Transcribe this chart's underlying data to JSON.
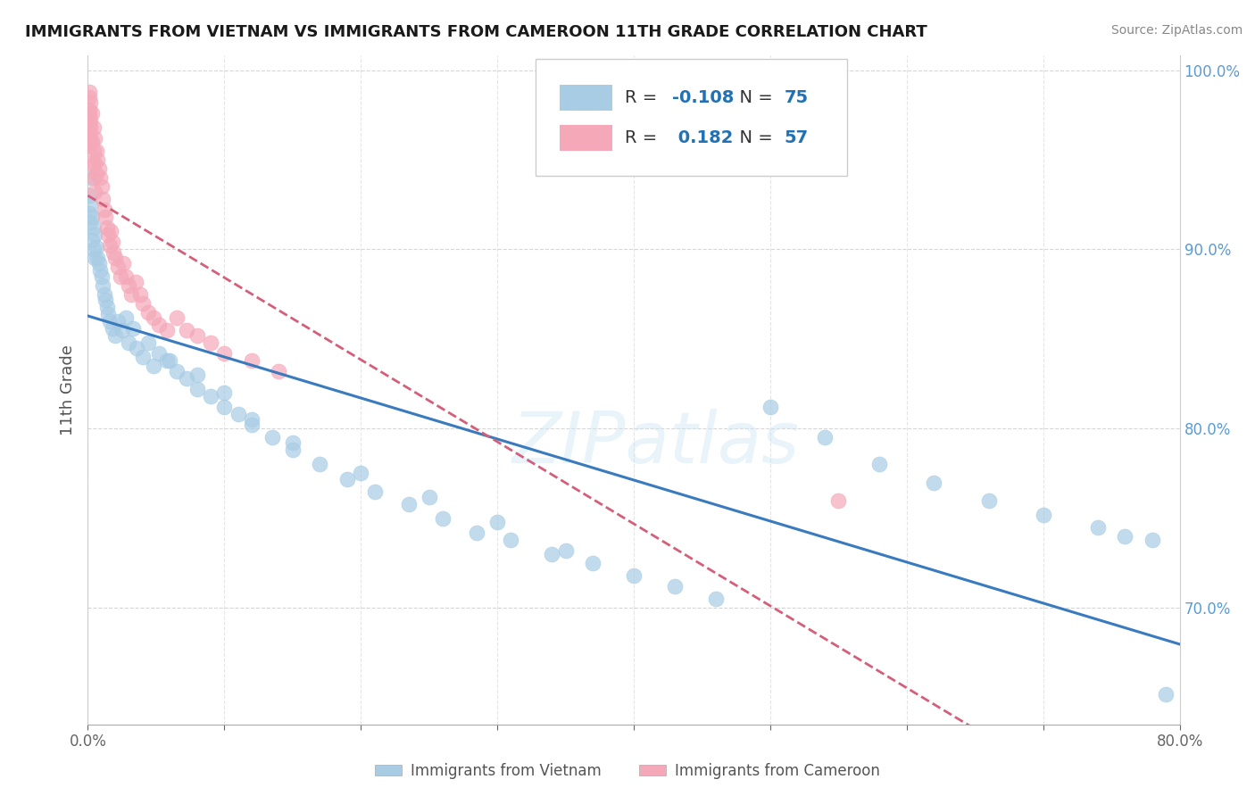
{
  "title": "IMMIGRANTS FROM VIETNAM VS IMMIGRANTS FROM CAMEROON 11TH GRADE CORRELATION CHART",
  "source": "Source: ZipAtlas.com",
  "ylabel": "11th Grade",
  "xlim": [
    0.0,
    0.8
  ],
  "ylim": [
    0.635,
    1.008
  ],
  "yticks": [
    0.7,
    0.8,
    0.9,
    1.0
  ],
  "ytick_labels": [
    "70.0%",
    "80.0%",
    "90.0%",
    "100.0%"
  ],
  "R_vietnam": -0.108,
  "N_vietnam": 75,
  "R_cameroon": 0.182,
  "N_cameroon": 57,
  "vietnam_color": "#a8cce4",
  "cameroon_color": "#f4a8b8",
  "vietnam_line_color": "#3a7abf",
  "cameroon_line_color": "#d45f7a",
  "vietnam_x": [
    0.001,
    0.001,
    0.001,
    0.002,
    0.002,
    0.003,
    0.003,
    0.004,
    0.004,
    0.005,
    0.005,
    0.006,
    0.007,
    0.008,
    0.009,
    0.01,
    0.011,
    0.012,
    0.013,
    0.014,
    0.015,
    0.016,
    0.018,
    0.02,
    0.022,
    0.025,
    0.028,
    0.03,
    0.033,
    0.036,
    0.04,
    0.044,
    0.048,
    0.052,
    0.058,
    0.065,
    0.072,
    0.08,
    0.09,
    0.1,
    0.11,
    0.12,
    0.135,
    0.15,
    0.17,
    0.19,
    0.21,
    0.235,
    0.26,
    0.285,
    0.31,
    0.34,
    0.37,
    0.4,
    0.43,
    0.46,
    0.5,
    0.54,
    0.58,
    0.62,
    0.66,
    0.7,
    0.74,
    0.76,
    0.78,
    0.79,
    0.1,
    0.15,
    0.2,
    0.25,
    0.3,
    0.35,
    0.12,
    0.08,
    0.06
  ],
  "vietnam_y": [
    0.94,
    0.93,
    0.92,
    0.925,
    0.915,
    0.918,
    0.905,
    0.912,
    0.9,
    0.908,
    0.895,
    0.901,
    0.895,
    0.892,
    0.888,
    0.885,
    0.88,
    0.875,
    0.872,
    0.868,
    0.864,
    0.86,
    0.856,
    0.852,
    0.86,
    0.855,
    0.862,
    0.848,
    0.856,
    0.845,
    0.84,
    0.848,
    0.835,
    0.842,
    0.838,
    0.832,
    0.828,
    0.822,
    0.818,
    0.812,
    0.808,
    0.802,
    0.795,
    0.788,
    0.78,
    0.772,
    0.765,
    0.758,
    0.75,
    0.742,
    0.738,
    0.73,
    0.725,
    0.718,
    0.712,
    0.705,
    0.812,
    0.795,
    0.78,
    0.77,
    0.76,
    0.752,
    0.745,
    0.74,
    0.738,
    0.652,
    0.82,
    0.792,
    0.775,
    0.762,
    0.748,
    0.732,
    0.805,
    0.83,
    0.838
  ],
  "cameroon_x": [
    0.001,
    0.001,
    0.001,
    0.002,
    0.002,
    0.002,
    0.003,
    0.003,
    0.004,
    0.004,
    0.005,
    0.005,
    0.006,
    0.006,
    0.007,
    0.008,
    0.009,
    0.01,
    0.011,
    0.012,
    0.013,
    0.014,
    0.015,
    0.016,
    0.017,
    0.018,
    0.019,
    0.02,
    0.022,
    0.024,
    0.026,
    0.028,
    0.03,
    0.032,
    0.035,
    0.038,
    0.04,
    0.044,
    0.048,
    0.052,
    0.058,
    0.065,
    0.072,
    0.08,
    0.09,
    0.1,
    0.12,
    0.14,
    0.001,
    0.002,
    0.003,
    0.004,
    0.005,
    0.55,
    0.001,
    0.001,
    0.002
  ],
  "cameroon_y": [
    0.988,
    0.978,
    0.97,
    0.982,
    0.972,
    0.962,
    0.976,
    0.96,
    0.968,
    0.955,
    0.962,
    0.948,
    0.955,
    0.942,
    0.95,
    0.945,
    0.94,
    0.935,
    0.928,
    0.922,
    0.918,
    0.912,
    0.908,
    0.902,
    0.91,
    0.904,
    0.898,
    0.895,
    0.89,
    0.885,
    0.892,
    0.885,
    0.88,
    0.875,
    0.882,
    0.875,
    0.87,
    0.865,
    0.862,
    0.858,
    0.855,
    0.862,
    0.855,
    0.852,
    0.848,
    0.842,
    0.838,
    0.832,
    0.965,
    0.958,
    0.948,
    0.94,
    0.932,
    0.76,
    0.985,
    0.975,
    0.968
  ]
}
